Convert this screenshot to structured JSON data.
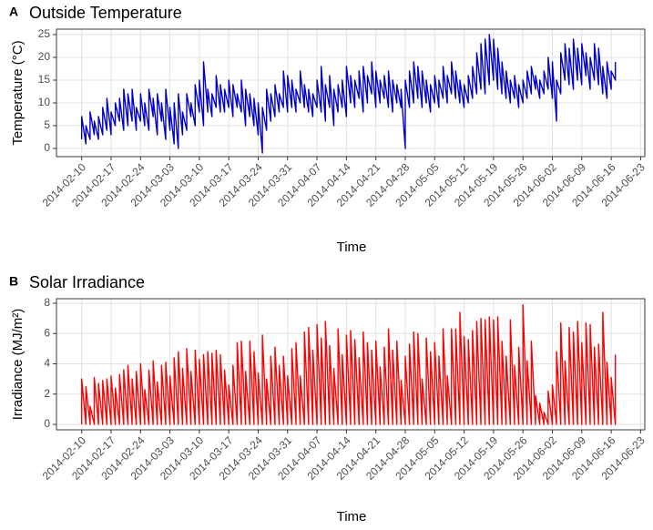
{
  "chart_data": [
    {
      "type": "line",
      "tag": "A",
      "title": "Outside Temperature",
      "x_label": "Time",
      "y_label": "Temperature (°C)",
      "color": "#0000cc",
      "grid": true,
      "xlim": [
        "2014-02-04",
        "2014-06-24"
      ],
      "xticks": [
        "2014-02-10",
        "2014-02-17",
        "2014-02-24",
        "2014-03-03",
        "2014-03-10",
        "2014-03-17",
        "2014-03-24",
        "2014-03-31",
        "2014-04-07",
        "2014-04-14",
        "2014-04-21",
        "2014-04-28",
        "2014-05-05",
        "2014-05-12",
        "2014-05-19",
        "2014-05-26",
        "2014-06-02",
        "2014-06-09",
        "2014-06-16",
        "2014-06-23"
      ],
      "ylim": [
        -1.8,
        26.2
      ],
      "yticks": [
        0,
        5,
        10,
        15,
        20,
        25
      ],
      "x": [
        "2014-02-10",
        "2014-02-10",
        "2014-02-11",
        "2014-02-11",
        "2014-02-12",
        "2014-02-12",
        "2014-02-13",
        "2014-02-13",
        "2014-02-14",
        "2014-02-14",
        "2014-02-15",
        "2014-02-15",
        "2014-02-16",
        "2014-02-16",
        "2014-02-17",
        "2014-02-17",
        "2014-02-18",
        "2014-02-18",
        "2014-02-19",
        "2014-02-19",
        "2014-02-20",
        "2014-02-20",
        "2014-02-21",
        "2014-02-21",
        "2014-02-22",
        "2014-02-22",
        "2014-02-23",
        "2014-02-23",
        "2014-02-24",
        "2014-02-24",
        "2014-02-25",
        "2014-02-25",
        "2014-02-26",
        "2014-02-26",
        "2014-02-27",
        "2014-02-27",
        "2014-02-28",
        "2014-02-28",
        "2014-03-01",
        "2014-03-01",
        "2014-03-02",
        "2014-03-02",
        "2014-03-03",
        "2014-03-03",
        "2014-03-04",
        "2014-03-04",
        "2014-03-05",
        "2014-03-05",
        "2014-03-06",
        "2014-03-06",
        "2014-03-07",
        "2014-03-07",
        "2014-03-08",
        "2014-03-08",
        "2014-03-09",
        "2014-03-09",
        "2014-03-10",
        "2014-03-10",
        "2014-03-11",
        "2014-03-11",
        "2014-03-12",
        "2014-03-12",
        "2014-03-13",
        "2014-03-13",
        "2014-03-14",
        "2014-03-14",
        "2014-03-15",
        "2014-03-15",
        "2014-03-16",
        "2014-03-16",
        "2014-03-17",
        "2014-03-17",
        "2014-03-18",
        "2014-03-18",
        "2014-03-19",
        "2014-03-19",
        "2014-03-20",
        "2014-03-20",
        "2014-03-21",
        "2014-03-21",
        "2014-03-22",
        "2014-03-22",
        "2014-03-23",
        "2014-03-23",
        "2014-03-24",
        "2014-03-24",
        "2014-03-25",
        "2014-03-25",
        "2014-03-26",
        "2014-03-26",
        "2014-03-27",
        "2014-03-27",
        "2014-03-28",
        "2014-03-28",
        "2014-03-29",
        "2014-03-29",
        "2014-03-30",
        "2014-03-30",
        "2014-03-31",
        "2014-03-31",
        "2014-04-01",
        "2014-04-01",
        "2014-04-02",
        "2014-04-02",
        "2014-04-03",
        "2014-04-03",
        "2014-04-04",
        "2014-04-04",
        "2014-04-05",
        "2014-04-05",
        "2014-04-06",
        "2014-04-06",
        "2014-04-07",
        "2014-04-07",
        "2014-04-08",
        "2014-04-08",
        "2014-04-09",
        "2014-04-09",
        "2014-04-10",
        "2014-04-10",
        "2014-04-11",
        "2014-04-11",
        "2014-04-12",
        "2014-04-12",
        "2014-04-13",
        "2014-04-13",
        "2014-04-14",
        "2014-04-14",
        "2014-04-15",
        "2014-04-15",
        "2014-04-16",
        "2014-04-16",
        "2014-04-17",
        "2014-04-17",
        "2014-04-18",
        "2014-04-18",
        "2014-04-19",
        "2014-04-19",
        "2014-04-20",
        "2014-04-20",
        "2014-04-21",
        "2014-04-21",
        "2014-04-22",
        "2014-04-22",
        "2014-04-23",
        "2014-04-23",
        "2014-04-24",
        "2014-04-24",
        "2014-04-25",
        "2014-04-25",
        "2014-04-26",
        "2014-04-26",
        "2014-04-27",
        "2014-04-27",
        "2014-04-28",
        "2014-04-28",
        "2014-04-29",
        "2014-04-29",
        "2014-04-30",
        "2014-04-30",
        "2014-05-01",
        "2014-05-01",
        "2014-05-02",
        "2014-05-02",
        "2014-05-03",
        "2014-05-03",
        "2014-05-04",
        "2014-05-04",
        "2014-05-05",
        "2014-05-05",
        "2014-05-06",
        "2014-05-06",
        "2014-05-07",
        "2014-05-07",
        "2014-05-08",
        "2014-05-08",
        "2014-05-09",
        "2014-05-09",
        "2014-05-10",
        "2014-05-10",
        "2014-05-11",
        "2014-05-11",
        "2014-05-12",
        "2014-05-12",
        "2014-05-13",
        "2014-05-13",
        "2014-05-14",
        "2014-05-14",
        "2014-05-15",
        "2014-05-15",
        "2014-05-16",
        "2014-05-16",
        "2014-05-17",
        "2014-05-17",
        "2014-05-18",
        "2014-05-18",
        "2014-05-19",
        "2014-05-19",
        "2014-05-20",
        "2014-05-20",
        "2014-05-21",
        "2014-05-21",
        "2014-05-22",
        "2014-05-22",
        "2014-05-23",
        "2014-05-23",
        "2014-05-24",
        "2014-05-24",
        "2014-05-25",
        "2014-05-25",
        "2014-05-26",
        "2014-05-26",
        "2014-05-27",
        "2014-05-27",
        "2014-05-28",
        "2014-05-28",
        "2014-05-29",
        "2014-05-29",
        "2014-05-30",
        "2014-05-30",
        "2014-05-31",
        "2014-05-31",
        "2014-06-01",
        "2014-06-01",
        "2014-06-02",
        "2014-06-02",
        "2014-06-03",
        "2014-06-03",
        "2014-06-04",
        "2014-06-04",
        "2014-06-05",
        "2014-06-05",
        "2014-06-06",
        "2014-06-06",
        "2014-06-07",
        "2014-06-07",
        "2014-06-08",
        "2014-06-08",
        "2014-06-09",
        "2014-06-09",
        "2014-06-10",
        "2014-06-10",
        "2014-06-11",
        "2014-06-11",
        "2014-06-12",
        "2014-06-12",
        "2014-06-13",
        "2014-06-13",
        "2014-06-14",
        "2014-06-14",
        "2014-06-15",
        "2014-06-15",
        "2014-06-16",
        "2014-06-16",
        "2014-06-17",
        "2014-06-17"
      ],
      "values": [
        2,
        7,
        1,
        5,
        2,
        8,
        3,
        6,
        2,
        7,
        3,
        9,
        4,
        11,
        3,
        8,
        5,
        10,
        6,
        11,
        4,
        13,
        5,
        12,
        6,
        13,
        4,
        9,
        6,
        12,
        5,
        10,
        4,
        13,
        7,
        11,
        3,
        12,
        6,
        10,
        2,
        13,
        4,
        9,
        1,
        10,
        0,
        12,
        3,
        8,
        4,
        12,
        7,
        10,
        5,
        14,
        8,
        15,
        5,
        19,
        8,
        13,
        7,
        12,
        9,
        16,
        8,
        14,
        8,
        13,
        9,
        15,
        7,
        14,
        9,
        12,
        8,
        15,
        5,
        13,
        7,
        12,
        5,
        11,
        3,
        10,
        -1,
        9,
        4,
        13,
        6,
        12,
        7,
        14,
        8,
        12,
        9,
        17,
        8,
        16,
        9,
        15,
        8,
        13,
        10,
        17,
        9,
        14,
        8,
        13,
        7,
        12,
        9,
        15,
        8,
        18,
        6,
        14,
        9,
        16,
        5,
        13,
        8,
        14,
        9,
        15,
        7,
        18,
        10,
        16,
        9,
        15,
        11,
        17,
        8,
        18,
        10,
        16,
        12,
        19,
        9,
        17,
        10,
        15,
        11,
        16,
        9,
        17,
        8,
        15,
        10,
        14,
        9,
        13,
        0,
        15,
        9,
        17,
        10,
        19,
        11,
        18,
        9,
        17,
        10,
        15,
        8,
        14,
        10,
        16,
        9,
        15,
        11,
        18,
        10,
        16,
        12,
        19,
        11,
        17,
        10,
        15,
        9,
        14,
        10,
        16,
        11,
        18,
        12,
        21,
        13,
        23,
        12,
        24,
        14,
        25,
        15,
        24,
        13,
        22,
        12,
        19,
        11,
        17,
        10,
        15,
        11,
        16,
        9,
        14,
        10,
        15,
        11,
        17,
        12,
        18,
        13,
        16,
        11,
        15,
        12,
        17,
        13,
        20,
        11,
        19,
        6,
        15,
        12,
        21,
        15,
        23,
        14,
        22,
        13,
        24,
        15,
        22,
        14,
        23,
        16,
        21,
        13,
        20,
        15,
        23,
        14,
        22,
        12,
        18,
        11,
        19,
        13,
        17,
        15,
        19
      ]
    },
    {
      "type": "line",
      "tag": "B",
      "title": "Solar Irradiance",
      "x_label": "Time",
      "y_label": "Irradiance (MJ/m²)",
      "color": "#ff0000",
      "grid": true,
      "xlim": [
        "2014-02-04",
        "2014-06-24"
      ],
      "xticks": [
        "2014-02-10",
        "2014-02-17",
        "2014-02-24",
        "2014-03-03",
        "2014-03-10",
        "2014-03-17",
        "2014-03-24",
        "2014-03-31",
        "2014-04-07",
        "2014-04-14",
        "2014-04-21",
        "2014-04-28",
        "2014-05-05",
        "2014-05-12",
        "2014-05-19",
        "2014-05-26",
        "2014-06-02",
        "2014-06-09",
        "2014-06-16",
        "2014-06-23"
      ],
      "ylim": [
        -0.36,
        8.3
      ],
      "yticks": [
        0,
        2,
        4,
        6,
        8
      ],
      "x": [
        "2014-02-10",
        "2014-02-10",
        "2014-02-11",
        "2014-02-11",
        "2014-02-12",
        "2014-02-12",
        "2014-02-13",
        "2014-02-13",
        "2014-02-14",
        "2014-02-14",
        "2014-02-15",
        "2014-02-15",
        "2014-02-16",
        "2014-02-16",
        "2014-02-17",
        "2014-02-17",
        "2014-02-18",
        "2014-02-18",
        "2014-02-19",
        "2014-02-19",
        "2014-02-20",
        "2014-02-20",
        "2014-02-21",
        "2014-02-21",
        "2014-02-22",
        "2014-02-22",
        "2014-02-23",
        "2014-02-23",
        "2014-02-24",
        "2014-02-24",
        "2014-02-25",
        "2014-02-25",
        "2014-02-26",
        "2014-02-26",
        "2014-02-27",
        "2014-02-27",
        "2014-02-28",
        "2014-02-28",
        "2014-03-01",
        "2014-03-01",
        "2014-03-02",
        "2014-03-02",
        "2014-03-03",
        "2014-03-03",
        "2014-03-04",
        "2014-03-04",
        "2014-03-05",
        "2014-03-05",
        "2014-03-06",
        "2014-03-06",
        "2014-03-07",
        "2014-03-07",
        "2014-03-08",
        "2014-03-08",
        "2014-03-09",
        "2014-03-09",
        "2014-03-10",
        "2014-03-10",
        "2014-03-11",
        "2014-03-11",
        "2014-03-12",
        "2014-03-12",
        "2014-03-13",
        "2014-03-13",
        "2014-03-14",
        "2014-03-14",
        "2014-03-15",
        "2014-03-15",
        "2014-03-16",
        "2014-03-16",
        "2014-03-17",
        "2014-03-17",
        "2014-03-18",
        "2014-03-18",
        "2014-03-19",
        "2014-03-19",
        "2014-03-20",
        "2014-03-20",
        "2014-03-21",
        "2014-03-21",
        "2014-03-22",
        "2014-03-22",
        "2014-03-23",
        "2014-03-23",
        "2014-03-24",
        "2014-03-24",
        "2014-03-25",
        "2014-03-25",
        "2014-03-26",
        "2014-03-26",
        "2014-03-27",
        "2014-03-27",
        "2014-03-28",
        "2014-03-28",
        "2014-03-29",
        "2014-03-29",
        "2014-03-30",
        "2014-03-30",
        "2014-03-31",
        "2014-03-31",
        "2014-04-01",
        "2014-04-01",
        "2014-04-02",
        "2014-04-02",
        "2014-04-03",
        "2014-04-03",
        "2014-04-04",
        "2014-04-04",
        "2014-04-05",
        "2014-04-05",
        "2014-04-06",
        "2014-04-06",
        "2014-04-07",
        "2014-04-07",
        "2014-04-08",
        "2014-04-08",
        "2014-04-09",
        "2014-04-09",
        "2014-04-10",
        "2014-04-10",
        "2014-04-11",
        "2014-04-11",
        "2014-04-12",
        "2014-04-12",
        "2014-04-13",
        "2014-04-13",
        "2014-04-14",
        "2014-04-14",
        "2014-04-15",
        "2014-04-15",
        "2014-04-16",
        "2014-04-16",
        "2014-04-17",
        "2014-04-17",
        "2014-04-18",
        "2014-04-18",
        "2014-04-19",
        "2014-04-19",
        "2014-04-20",
        "2014-04-20",
        "2014-04-21",
        "2014-04-21",
        "2014-04-22",
        "2014-04-22",
        "2014-04-23",
        "2014-04-23",
        "2014-04-24",
        "2014-04-24",
        "2014-04-25",
        "2014-04-25",
        "2014-04-26",
        "2014-04-26",
        "2014-04-27",
        "2014-04-27",
        "2014-04-28",
        "2014-04-28",
        "2014-04-29",
        "2014-04-29",
        "2014-04-30",
        "2014-04-30",
        "2014-05-01",
        "2014-05-01",
        "2014-05-02",
        "2014-05-02",
        "2014-05-03",
        "2014-05-03",
        "2014-05-04",
        "2014-05-04",
        "2014-05-05",
        "2014-05-05",
        "2014-05-06",
        "2014-05-06",
        "2014-05-07",
        "2014-05-07",
        "2014-05-08",
        "2014-05-08",
        "2014-05-09",
        "2014-05-09",
        "2014-05-10",
        "2014-05-10",
        "2014-05-11",
        "2014-05-11",
        "2014-05-12",
        "2014-05-12",
        "2014-05-13",
        "2014-05-13",
        "2014-05-14",
        "2014-05-14",
        "2014-05-15",
        "2014-05-15",
        "2014-05-16",
        "2014-05-16",
        "2014-05-17",
        "2014-05-17",
        "2014-05-18",
        "2014-05-18",
        "2014-05-19",
        "2014-05-19",
        "2014-05-20",
        "2014-05-20",
        "2014-05-21",
        "2014-05-21",
        "2014-05-22",
        "2014-05-22",
        "2014-05-23",
        "2014-05-23",
        "2014-05-24",
        "2014-05-24",
        "2014-05-25",
        "2014-05-25",
        "2014-05-26",
        "2014-05-26",
        "2014-05-27",
        "2014-05-27",
        "2014-05-28",
        "2014-05-28",
        "2014-05-29",
        "2014-05-29",
        "2014-05-30",
        "2014-05-30",
        "2014-05-31",
        "2014-05-31",
        "2014-06-01",
        "2014-06-01",
        "2014-06-02",
        "2014-06-02",
        "2014-06-03",
        "2014-06-03",
        "2014-06-04",
        "2014-06-04",
        "2014-06-05",
        "2014-06-05",
        "2014-06-06",
        "2014-06-06",
        "2014-06-07",
        "2014-06-07",
        "2014-06-08",
        "2014-06-08",
        "2014-06-09",
        "2014-06-09",
        "2014-06-10",
        "2014-06-10",
        "2014-06-11",
        "2014-06-11",
        "2014-06-12",
        "2014-06-12",
        "2014-06-13",
        "2014-06-13",
        "2014-06-14",
        "2014-06-14",
        "2014-06-15",
        "2014-06-15",
        "2014-06-16",
        "2014-06-16",
        "2014-06-17",
        "2014-06-17"
      ],
      "values": [
        0,
        3.0,
        0,
        2.5,
        0,
        1.2,
        0,
        3.1,
        0,
        2.7,
        0,
        2.9,
        0,
        3.0,
        0,
        3.2,
        0,
        2.4,
        0,
        3.3,
        0,
        3.6,
        0,
        3.9,
        0,
        3.0,
        0,
        3.5,
        0,
        4.0,
        0,
        2.3,
        0,
        3.6,
        0,
        4.2,
        0,
        2.8,
        0,
        3.9,
        0,
        4.1,
        0,
        3.2,
        0,
        4.4,
        0,
        4.8,
        0,
        3.7,
        0,
        5.0,
        0,
        3.5,
        0,
        4.9,
        0,
        4.3,
        0,
        4.6,
        0,
        4.8,
        0,
        4.7,
        0,
        4.9,
        0,
        4.6,
        0,
        3.6,
        0,
        2.6,
        0,
        3.9,
        0,
        5.4,
        0,
        5.5,
        0,
        3.5,
        0,
        5.5,
        0,
        4.8,
        0,
        3.4,
        0,
        5.9,
        0,
        3.0,
        0,
        4.5,
        0,
        5.1,
        0,
        3.9,
        0,
        4.5,
        0,
        3.2,
        0,
        5.0,
        0,
        5.4,
        0,
        3.2,
        0,
        6.1,
        0,
        6.4,
        0,
        4.9,
        0,
        6.6,
        0,
        5.7,
        0,
        6.8,
        0,
        5.2,
        0,
        3.7,
        0,
        6.3,
        0,
        4.6,
        0,
        5.9,
        0,
        6.2,
        0,
        5.6,
        0,
        4.4,
        0,
        6.1,
        0,
        5.4,
        0,
        4.9,
        0,
        5.5,
        0,
        3.8,
        0,
        5.1,
        0,
        6.3,
        0,
        4.9,
        0,
        5.5,
        0,
        2.9,
        0,
        4.5,
        0,
        5.3,
        0,
        6.1,
        0,
        6.0,
        0,
        3.0,
        0,
        5.7,
        0,
        4.8,
        0,
        5.4,
        0,
        4.5,
        0,
        6.3,
        0,
        3.2,
        0,
        6.3,
        0,
        6.3,
        0,
        7.4,
        0,
        5.8,
        0,
        5.6,
        0,
        6.2,
        0,
        6.8,
        0,
        7.0,
        0,
        6.9,
        0,
        7.1,
        0,
        6.9,
        0,
        7.1,
        0,
        5.5,
        0,
        4.5,
        0,
        6.9,
        0,
        3.9,
        0,
        5.1,
        0,
        7.9,
        0,
        4.2,
        0,
        5.5,
        0,
        1.9,
        0,
        1.4,
        0,
        0.8,
        0,
        2.2,
        0,
        2.6,
        0,
        4.8,
        0,
        6.7,
        0,
        4.2,
        0,
        6.4,
        0,
        6.1,
        0,
        6.8,
        0,
        5.4,
        0,
        6.7,
        0,
        6.6,
        0,
        5.1,
        0,
        5.3,
        0,
        7.4,
        0,
        4.1,
        0,
        3.1,
        0,
        4.6
      ]
    }
  ]
}
